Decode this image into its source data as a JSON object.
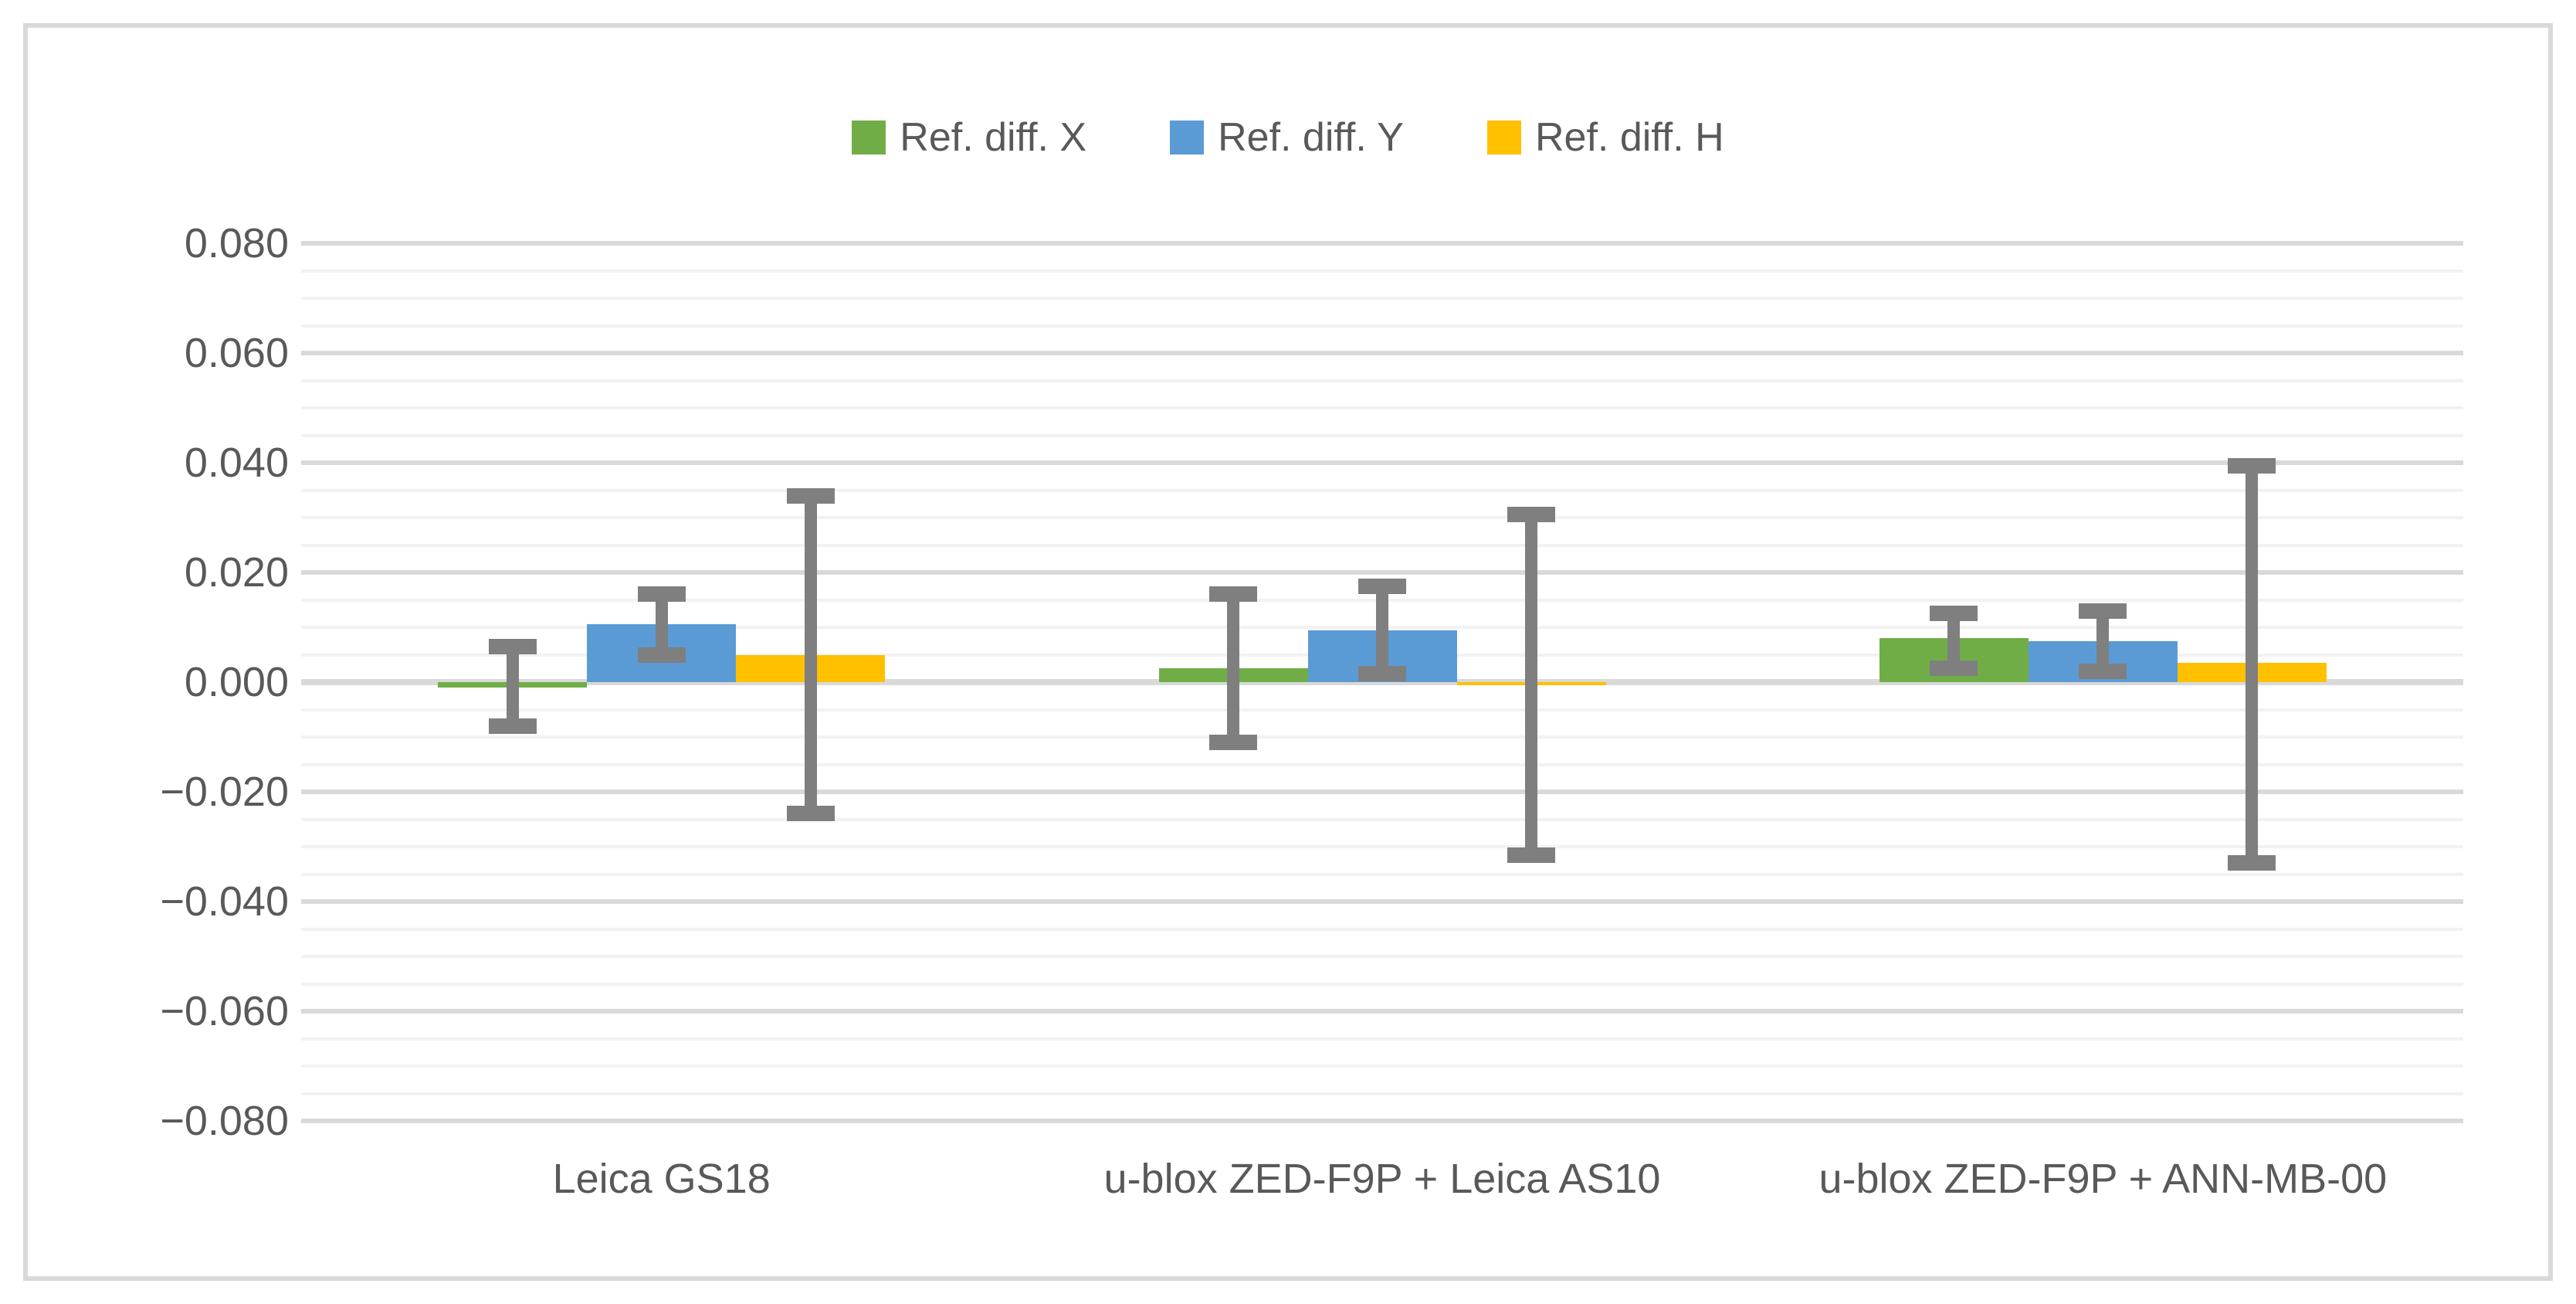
{
  "chart_data": {
    "type": "bar",
    "title": "",
    "categories": [
      "Leica GS18",
      "u-blox ZED-F9P + Leica AS10",
      "u-blox ZED-F9P + ANN-MB-00"
    ],
    "series": [
      {
        "name": "Ref. diff. X",
        "color": "#70AD47",
        "values": [
          -0.001,
          0.0025,
          0.008
        ],
        "error_high": [
          0.0065,
          0.016,
          0.0125
        ],
        "error_low": [
          -0.008,
          -0.011,
          0.0025
        ]
      },
      {
        "name": "Ref. diff. Y",
        "color": "#5B9BD5",
        "values": [
          0.0105,
          0.0095,
          0.0075
        ],
        "error_high": [
          0.016,
          0.0175,
          0.013
        ],
        "error_low": [
          0.005,
          0.0015,
          0.002
        ]
      },
      {
        "name": "Ref. diff. H",
        "color": "#FFC000",
        "values": [
          0.005,
          -0.0005,
          0.0035
        ],
        "error_high": [
          0.034,
          0.0305,
          0.0395
        ],
        "error_low": [
          -0.024,
          -0.0315,
          -0.033
        ]
      }
    ],
    "ylim": [
      -0.08,
      0.08
    ],
    "y_major_step": 0.02,
    "y_minor_step": 0.005,
    "y_tick_labels": [
      "0.080",
      "0.060",
      "0.040",
      "0.020",
      "0.000",
      "−0.020",
      "−0.040",
      "−0.060",
      "−0.080"
    ],
    "xlabel": "",
    "ylabel": "",
    "grid": true,
    "legend_position": "top",
    "error_bar_color": "#7F7F7F",
    "gridline_major_color": "#D9D9D9",
    "gridline_minor_color": "#F2F2F2",
    "axis_text_color": "#595959",
    "frame_border_color": "#D9D9D9"
  }
}
